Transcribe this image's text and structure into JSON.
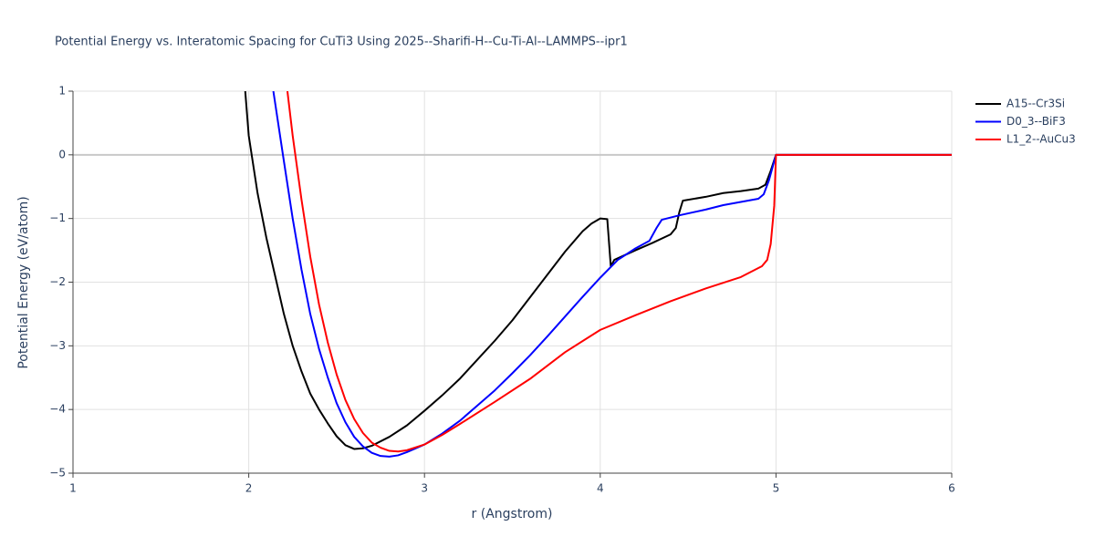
{
  "chart_data": {
    "type": "line",
    "title": "Potential Energy vs. Interatomic Spacing for CuTi3 Using 2025--Sharifi-H--Cu-Ti-Al--LAMMPS--ipr1",
    "x_label": "r (Angstrom)",
    "y_label": "Potential Energy (eV/atom)",
    "xlim": [
      1,
      6
    ],
    "ylim": [
      -5,
      1
    ],
    "xticks": [
      1,
      2,
      3,
      4,
      5,
      6
    ],
    "yticks": [
      {
        "value": -5,
        "label": "−5"
      },
      {
        "value": -4,
        "label": "−4"
      },
      {
        "value": -3,
        "label": "−3"
      },
      {
        "value": -2,
        "label": "−2"
      },
      {
        "value": -1,
        "label": "−1"
      },
      0,
      1
    ],
    "grid": true,
    "legend": "right",
    "series": [
      {
        "name": "A15--Cr3Si",
        "color": "#000000",
        "x": [
          1.98,
          2.0,
          2.05,
          2.1,
          2.15,
          2.2,
          2.25,
          2.3,
          2.35,
          2.4,
          2.45,
          2.5,
          2.55,
          2.6,
          2.65,
          2.7,
          2.8,
          2.9,
          3.0,
          3.1,
          3.2,
          3.3,
          3.4,
          3.5,
          3.6,
          3.7,
          3.8,
          3.9,
          3.95,
          4.0,
          4.04,
          4.06,
          4.08,
          4.2,
          4.3,
          4.4,
          4.43,
          4.45,
          4.47,
          4.6,
          4.7,
          4.8,
          4.9,
          4.94,
          4.97,
          5.0,
          6.0
        ],
        "values": [
          1.0,
          0.3,
          -0.6,
          -1.3,
          -1.9,
          -2.5,
          -3.0,
          -3.4,
          -3.75,
          -4.0,
          -4.22,
          -4.42,
          -4.56,
          -4.62,
          -4.61,
          -4.57,
          -4.43,
          -4.25,
          -4.02,
          -3.78,
          -3.52,
          -3.22,
          -2.92,
          -2.6,
          -2.24,
          -1.88,
          -1.52,
          -1.2,
          -1.08,
          -1.0,
          -1.01,
          -1.75,
          -1.65,
          -1.5,
          -1.38,
          -1.25,
          -1.15,
          -0.9,
          -0.72,
          -0.66,
          -0.6,
          -0.57,
          -0.53,
          -0.47,
          -0.25,
          0,
          0
        ]
      },
      {
        "name": "D0_3--BiF3",
        "color": "#0000ff",
        "x": [
          2.14,
          2.2,
          2.25,
          2.3,
          2.35,
          2.4,
          2.45,
          2.5,
          2.55,
          2.6,
          2.65,
          2.7,
          2.75,
          2.8,
          2.85,
          2.9,
          3.0,
          3.1,
          3.2,
          3.3,
          3.4,
          3.5,
          3.6,
          3.7,
          3.8,
          3.9,
          4.0,
          4.1,
          4.2,
          4.28,
          4.32,
          4.35,
          4.45,
          4.6,
          4.7,
          4.8,
          4.9,
          4.93,
          4.96,
          5.0,
          6.0
        ],
        "values": [
          1.0,
          -0.1,
          -1.0,
          -1.8,
          -2.5,
          -3.05,
          -3.5,
          -3.9,
          -4.2,
          -4.43,
          -4.58,
          -4.68,
          -4.73,
          -4.74,
          -4.72,
          -4.67,
          -4.55,
          -4.38,
          -4.18,
          -3.94,
          -3.7,
          -3.43,
          -3.15,
          -2.85,
          -2.54,
          -2.23,
          -1.93,
          -1.65,
          -1.47,
          -1.35,
          -1.15,
          -1.02,
          -0.95,
          -0.86,
          -0.79,
          -0.74,
          -0.69,
          -0.62,
          -0.4,
          0,
          0
        ]
      },
      {
        "name": "L1_2--AuCu3",
        "color": "#ff0000",
        "x": [
          2.22,
          2.25,
          2.3,
          2.35,
          2.4,
          2.45,
          2.5,
          2.55,
          2.6,
          2.65,
          2.7,
          2.75,
          2.8,
          2.85,
          2.9,
          3.0,
          3.1,
          3.2,
          3.4,
          3.6,
          3.8,
          4.0,
          4.2,
          4.4,
          4.6,
          4.8,
          4.92,
          4.95,
          4.97,
          4.99,
          5.0,
          6.0
        ],
        "values": [
          1.0,
          0.3,
          -0.7,
          -1.6,
          -2.35,
          -2.95,
          -3.45,
          -3.85,
          -4.15,
          -4.37,
          -4.52,
          -4.6,
          -4.65,
          -4.66,
          -4.64,
          -4.55,
          -4.4,
          -4.23,
          -3.88,
          -3.52,
          -3.1,
          -2.75,
          -2.52,
          -2.3,
          -2.1,
          -1.92,
          -1.75,
          -1.65,
          -1.4,
          -0.8,
          0,
          0
        ]
      }
    ]
  }
}
